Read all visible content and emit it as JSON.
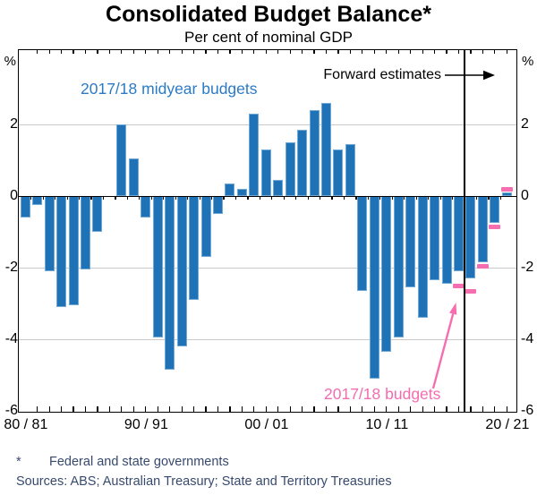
{
  "title": "Consolidated Budget Balance*",
  "subtitle": "Per cent of nominal GDP",
  "annotations": {
    "forward_estimates": "Forward estimates",
    "midyear_label": "2017/18 midyear budgets",
    "budgets_label": "2017/18 budgets"
  },
  "axis": {
    "unit_left": "%",
    "unit_right": "%",
    "y_ticks": [
      2,
      0,
      -2,
      -4,
      -6
    ],
    "x_ticks": [
      "80 / 81",
      "90 / 91",
      "00 / 01",
      "10 / 11",
      "20 / 21"
    ],
    "ymin": -6,
    "ymax": 4.05
  },
  "footnote": {
    "star": "*",
    "text": "Federal and state governments",
    "sources": "Sources: ABS; Australian Treasury; State and Territory Treasuries"
  },
  "colors": {
    "bar_blue": "#1f72b5",
    "bar_edge": "#6fa9d8",
    "pink": "#f56fb0",
    "blue_text": "#2a7ac6",
    "pink_text": "#f46cb0",
    "grid": "#c9c9c9",
    "axis": "#000000",
    "footnote_text": "#374a6e"
  },
  "chart_data": {
    "type": "bar",
    "title": "Consolidated Budget Balance*",
    "subtitle": "Per cent of nominal GDP",
    "ylabel": "%",
    "ylim": [
      -6,
      4.05
    ],
    "grid_values": [
      2,
      -2,
      -4
    ],
    "zero_line": true,
    "forward_estimates_boundary_after": "16/17",
    "categories": [
      "80/81",
      "81/82",
      "82/83",
      "83/84",
      "84/85",
      "85/86",
      "86/87",
      "87/88",
      "88/89",
      "89/90",
      "90/91",
      "91/92",
      "92/93",
      "93/94",
      "94/95",
      "95/96",
      "96/97",
      "97/98",
      "98/99",
      "99/00",
      "00/01",
      "01/02",
      "02/03",
      "03/04",
      "04/05",
      "05/06",
      "06/07",
      "07/08",
      "08/09",
      "09/10",
      "10/11",
      "11/12",
      "12/13",
      "13/14",
      "14/15",
      "15/16",
      "16/17",
      "17/18",
      "18/19",
      "19/20",
      "20/21"
    ],
    "series": [
      {
        "name": "2017/18 midyear budgets",
        "style": "bar",
        "color": "#1f72b5",
        "values": [
          -0.6,
          -0.25,
          -2.1,
          -3.1,
          -3.05,
          -2.05,
          -1.0,
          0,
          2.0,
          1.05,
          -0.6,
          -3.95,
          -4.85,
          -4.2,
          -2.9,
          -1.7,
          -0.5,
          0.35,
          0.2,
          2.3,
          1.3,
          0.45,
          1.5,
          1.85,
          2.4,
          2.6,
          1.3,
          1.45,
          -2.65,
          -5.1,
          -4.35,
          -3.95,
          -2.55,
          -3.4,
          -2.35,
          -2.45,
          -2.1,
          -2.3,
          -1.85,
          -0.75,
          0.1
        ]
      },
      {
        "name": "2017/18 budgets",
        "style": "dash-marker",
        "color": "#f56fb0",
        "values": [
          null,
          null,
          null,
          null,
          null,
          null,
          null,
          null,
          null,
          null,
          null,
          null,
          null,
          null,
          null,
          null,
          null,
          null,
          null,
          null,
          null,
          null,
          null,
          null,
          null,
          null,
          null,
          null,
          null,
          null,
          null,
          null,
          null,
          null,
          null,
          null,
          -2.5,
          -2.65,
          -1.95,
          -0.85,
          0.2
        ]
      }
    ]
  }
}
